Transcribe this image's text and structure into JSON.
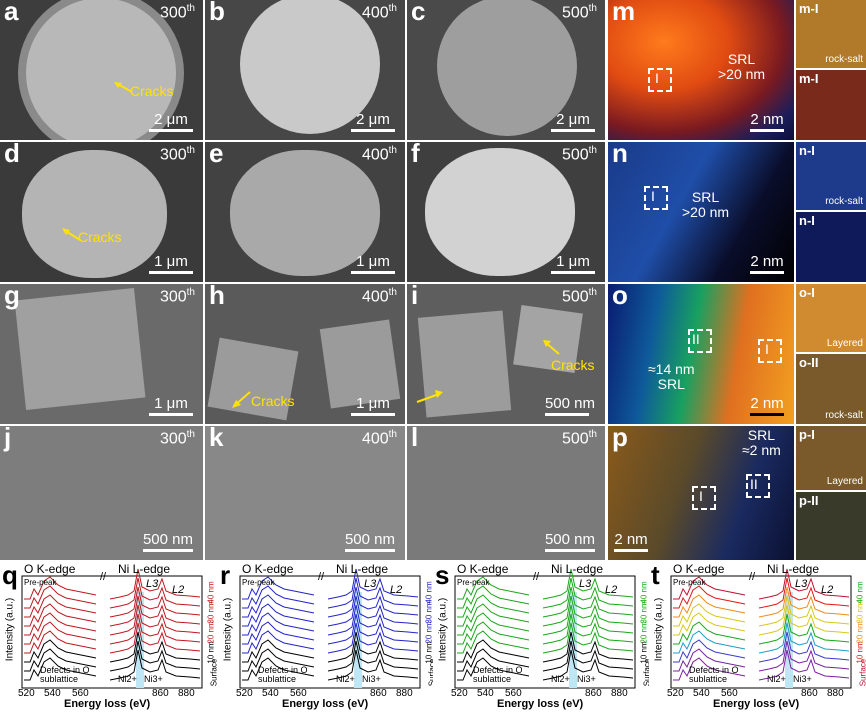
{
  "panels": {
    "a": {
      "letter": "a",
      "cycle": "300",
      "sup": "th",
      "scale": "2 μm",
      "note": "Cracks"
    },
    "b": {
      "letter": "b",
      "cycle": "400",
      "sup": "th",
      "scale": "2 μm"
    },
    "c": {
      "letter": "c",
      "cycle": "500",
      "sup": "th",
      "scale": "2 μm"
    },
    "d": {
      "letter": "d",
      "cycle": "300",
      "sup": "th",
      "scale": "1 μm",
      "note": "Cracks"
    },
    "e": {
      "letter": "e",
      "cycle": "400",
      "sup": "th",
      "scale": "1 μm"
    },
    "f": {
      "letter": "f",
      "cycle": "500",
      "sup": "th",
      "scale": "1 μm"
    },
    "g": {
      "letter": "g",
      "cycle": "300",
      "sup": "th",
      "scale": "1 μm"
    },
    "h": {
      "letter": "h",
      "cycle": "400",
      "sup": "th",
      "scale": "1 μm",
      "note": "Cracks"
    },
    "i": {
      "letter": "i",
      "cycle": "500",
      "sup": "th",
      "scale": "500 nm",
      "note": "Cracks"
    },
    "j": {
      "letter": "j",
      "cycle": "300",
      "sup": "th",
      "scale": "500 nm"
    },
    "k": {
      "letter": "k",
      "cycle": "400",
      "sup": "th",
      "scale": "500 nm"
    },
    "l": {
      "letter": "l",
      "cycle": "500",
      "sup": "th",
      "scale": "500 nm"
    },
    "m": {
      "letter": "m",
      "srl": "SRL",
      "srl2": ">20 nm",
      "scale": "2 nm",
      "box": "I"
    },
    "n": {
      "letter": "n",
      "srl": "SRL",
      "srl2": ">20 nm",
      "scale": "2 nm",
      "box": "I"
    },
    "o": {
      "letter": "o",
      "srl": "≈14 nm",
      "srl2": "SRL",
      "scale": "2 nm",
      "box1": "II",
      "box2": "I"
    },
    "p": {
      "letter": "p",
      "srl": "SRL",
      "srl2": "≈2 nm",
      "scale": "2 nm",
      "box1": "I",
      "box2": "II"
    }
  },
  "insets": {
    "m1": {
      "title": "m-I",
      "foot": "rock-salt"
    },
    "m2": {
      "title": "m-I",
      "foot": ""
    },
    "n1": {
      "title": "n-I",
      "foot": "rock-salt"
    },
    "n2": {
      "title": "n-I",
      "foot": ""
    },
    "o1": {
      "title": "o-I",
      "foot": "Layered"
    },
    "o2": {
      "title": "o-II",
      "foot": "rock-salt"
    },
    "p1": {
      "title": "p-I",
      "foot": "Layered"
    },
    "p2": {
      "title": "p-II",
      "foot": ""
    }
  },
  "spectra": [
    {
      "letter": "q",
      "okedge": "O K-edge",
      "niedge": "Ni L-edge",
      "prepeak": "Pre-peak",
      "defects": "Defects in O sublattice",
      "l3": "L3",
      "l2": "L2",
      "ni2": "Ni2+",
      "ni3": "Ni3+",
      "xlabel": "Energy loss (eV)",
      "ylabel": "Intensity (a.u.)",
      "ticks": [
        "520",
        "540",
        "560",
        "860",
        "880"
      ],
      "depths": [
        "Surface",
        "10 nm",
        "20 nm",
        "30 nm",
        "40 nm"
      ],
      "color": "#c0171e"
    },
    {
      "letter": "r",
      "okedge": "O K-edge",
      "niedge": "Ni L-edge",
      "prepeak": "Pre-peak",
      "defects": "Defects in O sublattice",
      "l3": "L3",
      "l2": "L2",
      "ni2": "Ni2+",
      "ni3": "Ni3+",
      "xlabel": "Energy loss (eV)",
      "ylabel": "Intensity (a.u.)",
      "ticks": [
        "520",
        "540",
        "560",
        "860",
        "880"
      ],
      "depths": [
        "Surface",
        "10 nm",
        "20 nm",
        "30 nm",
        "40 nm"
      ],
      "color": "#2222cc"
    },
    {
      "letter": "s",
      "okedge": "O K-edge",
      "niedge": "Ni L-edge",
      "prepeak": "Pre-peak",
      "defects": "Defects in O sublattice",
      "l3": "L3",
      "l2": "L2",
      "ni2": "Ni2+",
      "ni3": "Ni3+",
      "xlabel": "Energy loss (eV)",
      "ylabel": "Intensity (a.u.)",
      "ticks": [
        "520",
        "540",
        "560",
        "860",
        "880"
      ],
      "depths": [
        "Surface",
        "10 nm",
        "20 nm",
        "30 nm",
        "40 nm"
      ],
      "color": "#18a818"
    },
    {
      "letter": "t",
      "okedge": "O K-edge",
      "niedge": "Ni L-edge",
      "prepeak": "Pre-peak",
      "defects": "Defects in O sublattice",
      "l3": "L3",
      "l2": "L2",
      "ni2": "Ni2+",
      "ni3": "Ni3+",
      "xlabel": "Energy loss (eV)",
      "ylabel": "Intensity (a.u.)",
      "ticks": [
        "520",
        "540",
        "560",
        "860",
        "880"
      ],
      "depths": [
        "Surface",
        "10 nm",
        "20 nm",
        "30 nm",
        "40 nm"
      ],
      "color": "rainbow"
    }
  ]
}
